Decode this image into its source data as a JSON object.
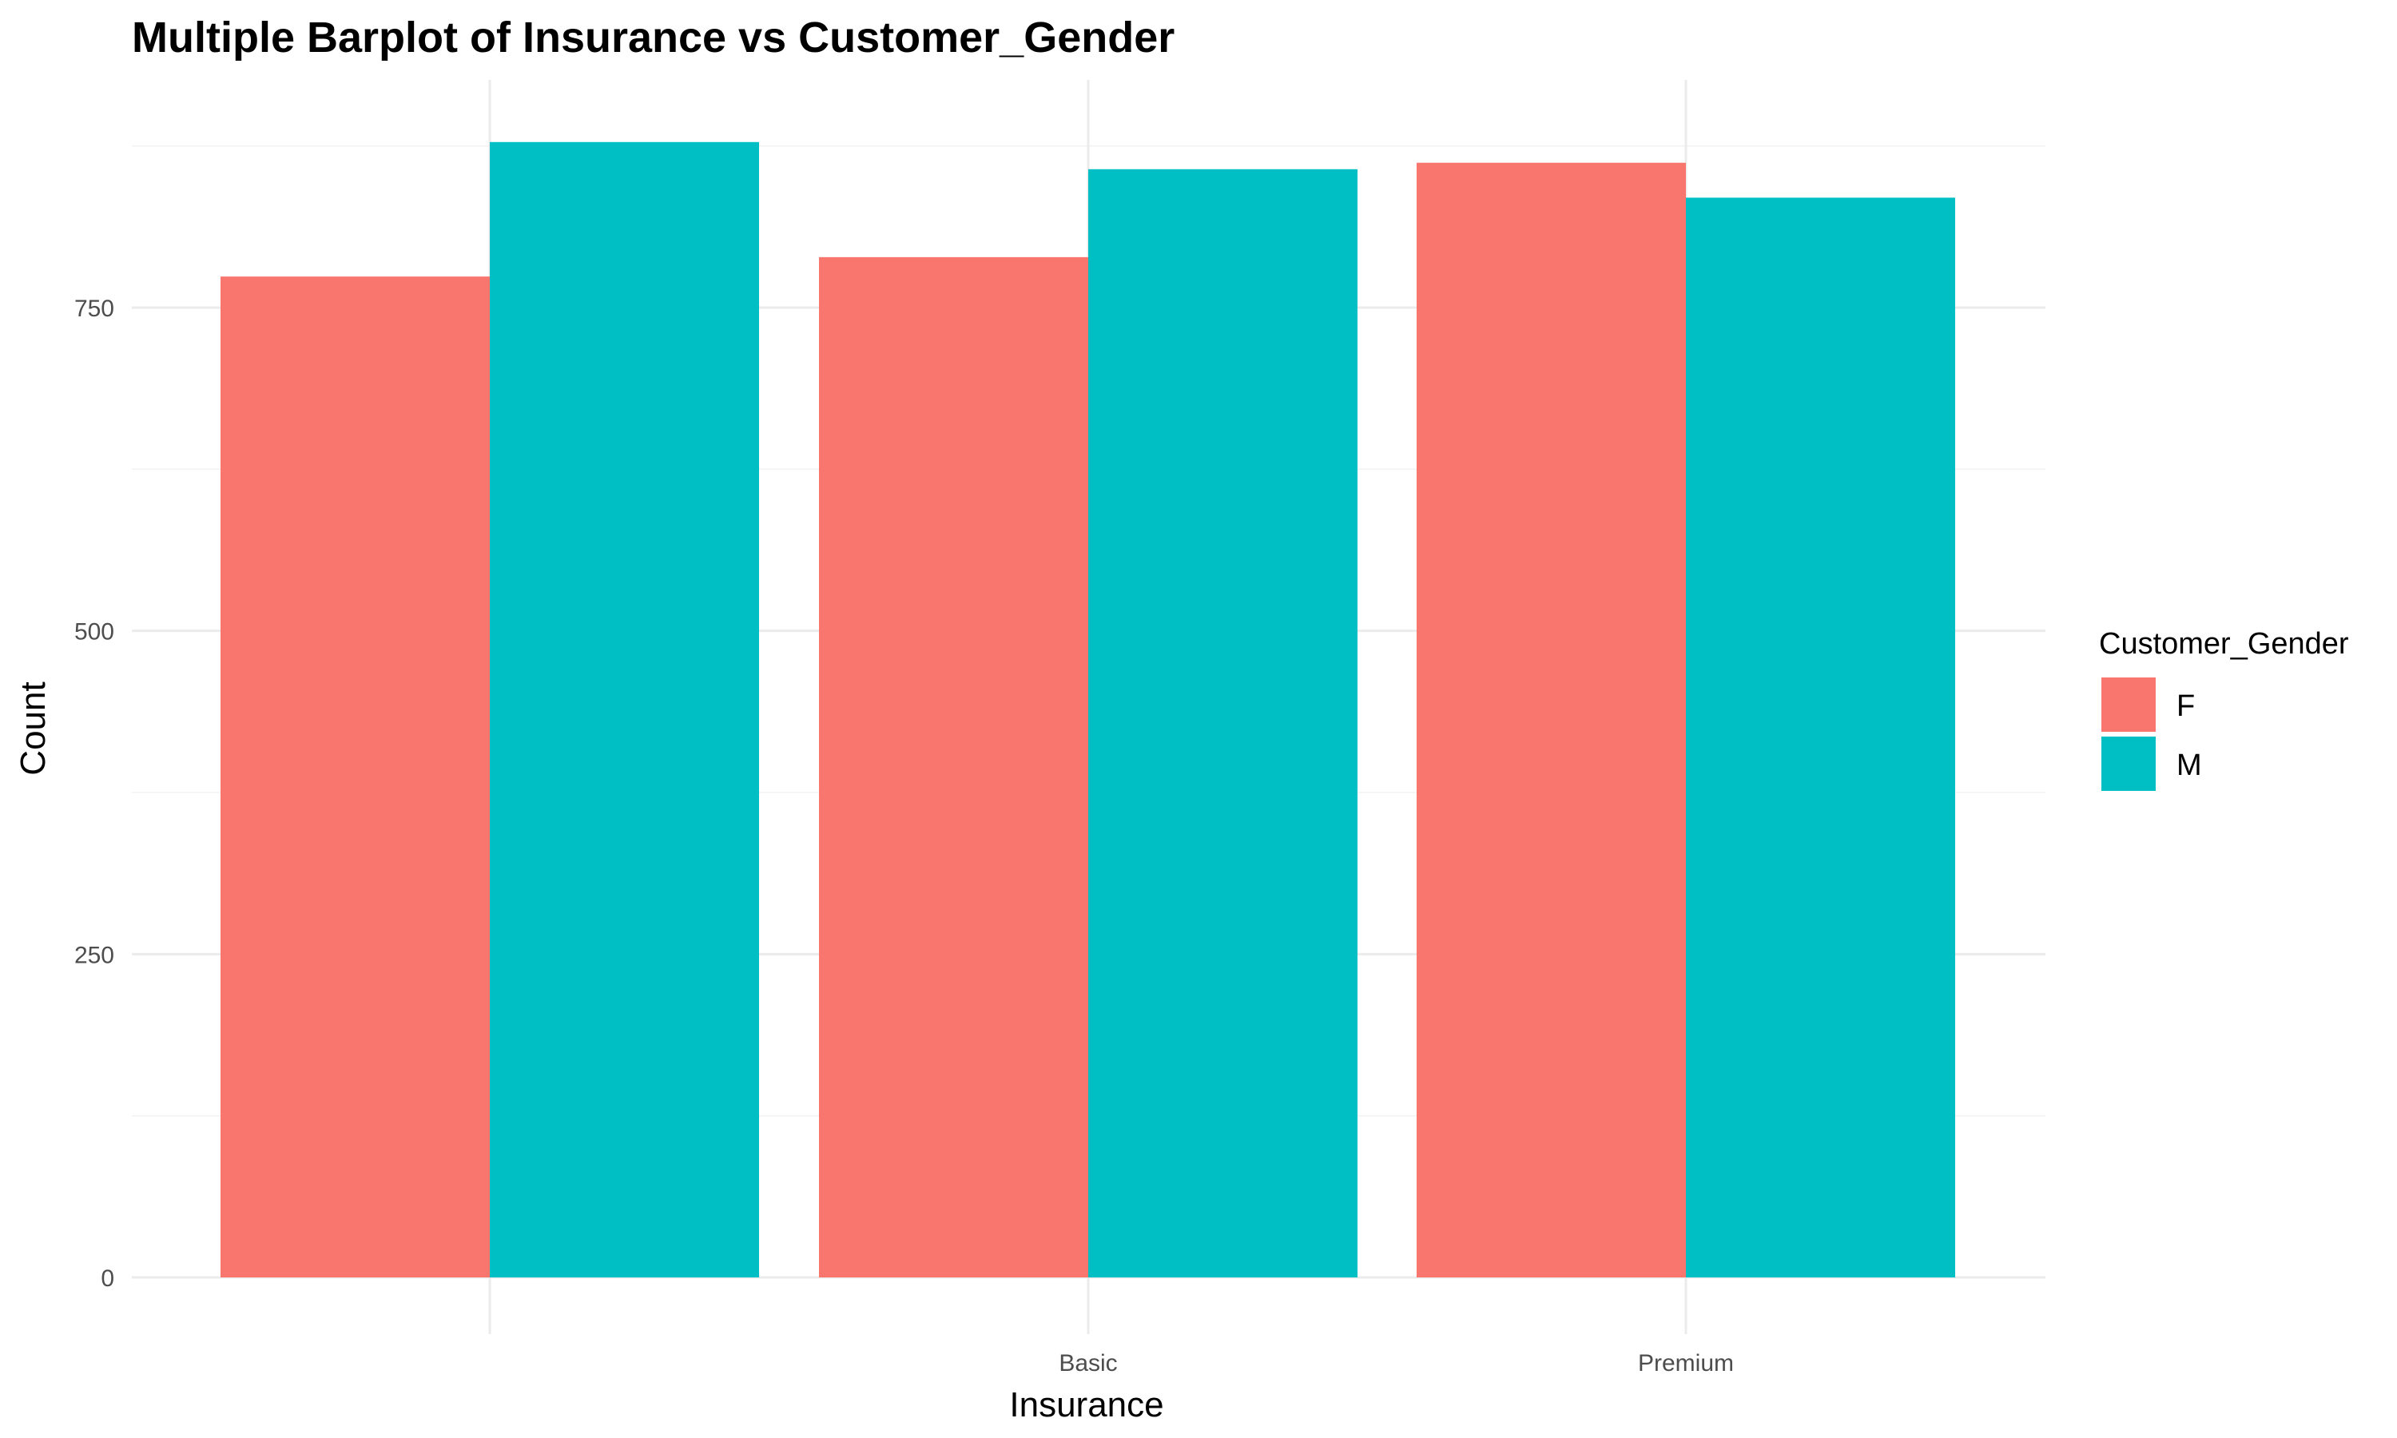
{
  "chart_data": {
    "type": "bar",
    "title": "Multiple Barplot of Insurance vs Customer_Gender",
    "xlabel": "Insurance",
    "ylabel": "Count",
    "categories": [
      "",
      "Basic",
      "Premium"
    ],
    "series": [
      {
        "name": "F",
        "color": "#F8766D",
        "values": [
          774,
          789,
          862
        ]
      },
      {
        "name": "M",
        "color": "#00BFC4",
        "values": [
          878,
          857,
          835
        ]
      }
    ],
    "y_ticks": [
      0,
      250,
      500,
      750
    ],
    "y_tick_labels": [
      "0",
      "250",
      "500",
      "750"
    ],
    "ylim": [
      0,
      920
    ],
    "grid": true,
    "legend": {
      "title": "Customer_Gender",
      "position": "right",
      "entries": [
        "F",
        "M"
      ]
    }
  }
}
